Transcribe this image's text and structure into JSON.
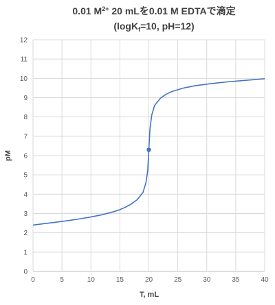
{
  "chart_data": {
    "type": "line",
    "title_line1_a": "0.01 M",
    "title_line1_sup": "2+",
    "title_line1_b": " 20 mLを0.01 M EDTAで滴定",
    "title_line2_a": "(logK",
    "title_line2_sub": "f",
    "title_line2_b": "=10, pH=12)",
    "xlabel": "T, mL",
    "ylabel": "pM",
    "xlim": [
      0,
      40
    ],
    "ylim": [
      0,
      12
    ],
    "x_ticks": [
      "0",
      "5",
      "10",
      "15",
      "20",
      "25",
      "30",
      "35",
      "40"
    ],
    "y_ticks": [
      "0",
      "1",
      "2",
      "3",
      "4",
      "5",
      "6",
      "7",
      "8",
      "9",
      "10",
      "11",
      "12"
    ],
    "grid": true,
    "line_color": "#4472c4",
    "series": [
      {
        "x": [
          0,
          2,
          4,
          6,
          8,
          10,
          12,
          14,
          15,
          16,
          17,
          18,
          19,
          19.5,
          19.8,
          19.95,
          20,
          20.05,
          20.2,
          20.5,
          21,
          22,
          23,
          24,
          26,
          28,
          30,
          32,
          34,
          36,
          38,
          40
        ],
        "y": [
          2.4,
          2.48,
          2.55,
          2.63,
          2.72,
          2.82,
          2.94,
          3.1,
          3.2,
          3.33,
          3.5,
          3.72,
          4.1,
          4.6,
          5.2,
          6.0,
          6.3,
          6.6,
          7.4,
          8.1,
          8.6,
          8.97,
          9.18,
          9.32,
          9.5,
          9.62,
          9.7,
          9.77,
          9.83,
          9.88,
          9.93,
          9.98
        ]
      }
    ],
    "marker": {
      "x": 20,
      "y": 6.3
    }
  }
}
